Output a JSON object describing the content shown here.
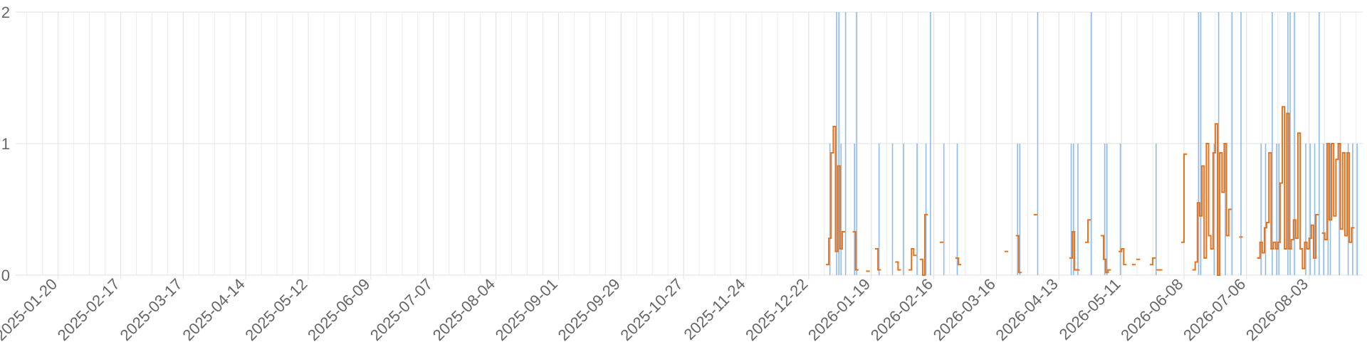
{
  "chart_data": {
    "type": "bar",
    "xlim": [
      "2025-01-01",
      "2026-08-27"
    ],
    "xticks": [
      "2025-01-20",
      "2025-02-17",
      "2025-03-17",
      "2025-04-14",
      "2025-05-12",
      "2025-06-09",
      "2025-07-07",
      "2025-08-04",
      "2025-09-01",
      "2025-09-29",
      "2025-10-27",
      "2025-11-24",
      "2025-12-22",
      "2026-01-19",
      "2026-02-16",
      "2026-03-16",
      "2026-04-13",
      "2026-05-11",
      "2026-06-08",
      "2026-07-06",
      "2026-08-03"
    ],
    "ylim": [
      0,
      2
    ],
    "yticks": [
      0,
      1,
      2
    ],
    "grid": true,
    "series": [
      {
        "color": "#8fbcea",
        "x": [
          "2025-12-31",
          "2026-01-03",
          "2026-01-04",
          "2026-01-05",
          "2026-01-07",
          "2026-01-11",
          "2026-01-12",
          "2026-01-22",
          "2026-01-28",
          "2026-02-02",
          "2026-02-08",
          "2026-02-12",
          "2026-02-14",
          "2026-02-20",
          "2026-02-26",
          "2026-03-25",
          "2026-03-26",
          "2026-04-03",
          "2026-04-18",
          "2026-04-19",
          "2026-04-21",
          "2026-04-27",
          "2026-05-03",
          "2026-05-04",
          "2026-05-10",
          "2026-05-26",
          "2026-06-14",
          "2026-06-15",
          "2026-06-21",
          "2026-06-23",
          "2026-06-26",
          "2026-06-29",
          "2026-07-03",
          "2026-07-12",
          "2026-07-14",
          "2026-07-17",
          "2026-07-19",
          "2026-07-20",
          "2026-07-24",
          "2026-07-25",
          "2026-07-27",
          "2026-08-01",
          "2026-08-03",
          "2026-08-05",
          "2026-08-07",
          "2026-08-09",
          "2026-08-11",
          "2026-08-12",
          "2026-08-16",
          "2026-08-20",
          "2026-08-22",
          "2026-08-24"
        ],
        "values": [
          1,
          2,
          2,
          1,
          2,
          1,
          2,
          1,
          1,
          1,
          1,
          1,
          2,
          1,
          1,
          1,
          1,
          2,
          1,
          1,
          1,
          2,
          1,
          1,
          1,
          1,
          2,
          2,
          1,
          2,
          1,
          2,
          2,
          1,
          1,
          2,
          1,
          1,
          2,
          2,
          2,
          1,
          1,
          1,
          2,
          1,
          1,
          1,
          1,
          1,
          1,
          1
        ]
      },
      {
        "type": "line",
        "step": "after",
        "color": "#e8731a",
        "x": [
          "2025-12-30",
          "2025-12-31",
          "2026-01-01",
          "2026-01-02",
          "2026-01-03",
          "2026-01-04",
          "2026-01-05",
          "2026-01-06",
          "2026-01-07",
          "2026-01-11",
          "2026-01-12",
          "2026-01-13",
          "2026-01-17",
          "2026-01-18",
          "2026-01-21",
          "2026-01-22",
          "2026-01-23",
          "2026-01-30",
          "2026-01-31",
          "2026-02-01",
          "2026-02-05",
          "2026-02-06",
          "2026-02-07",
          "2026-02-08",
          "2026-02-10",
          "2026-02-11",
          "2026-02-12",
          "2026-02-13",
          "2026-02-19",
          "2026-02-20",
          "2026-02-26",
          "2026-02-27",
          "2026-02-28",
          "2026-03-20",
          "2026-03-21",
          "2026-03-25",
          "2026-03-26",
          "2026-03-27",
          "2026-04-02",
          "2026-04-03",
          "2026-04-18",
          "2026-04-19",
          "2026-04-20",
          "2026-04-21",
          "2026-04-22",
          "2026-04-25",
          "2026-04-26",
          "2026-04-27",
          "2026-05-02",
          "2026-05-03",
          "2026-05-04",
          "2026-05-05",
          "2026-05-06",
          "2026-05-10",
          "2026-05-11",
          "2026-05-12",
          "2026-05-13",
          "2026-05-16",
          "2026-05-17",
          "2026-05-18",
          "2026-05-19",
          "2026-05-24",
          "2026-05-25",
          "2026-05-26",
          "2026-05-27",
          "2026-05-28",
          "2026-05-29",
          "2026-06-07",
          "2026-06-08",
          "2026-06-09",
          "2026-06-12",
          "2026-06-13",
          "2026-06-14",
          "2026-06-15",
          "2026-06-16",
          "2026-06-17",
          "2026-06-18",
          "2026-06-19",
          "2026-06-20",
          "2026-06-21",
          "2026-06-22",
          "2026-06-23",
          "2026-06-24",
          "2026-06-25",
          "2026-06-26",
          "2026-06-27",
          "2026-06-28",
          "2026-06-29",
          "2026-07-03",
          "2026-07-04",
          "2026-07-11",
          "2026-07-12",
          "2026-07-13",
          "2026-07-14",
          "2026-07-15",
          "2026-07-16",
          "2026-07-17",
          "2026-07-18",
          "2026-07-19",
          "2026-07-20",
          "2026-07-21",
          "2026-07-22",
          "2026-07-23",
          "2026-07-24",
          "2026-07-25",
          "2026-07-26",
          "2026-07-27",
          "2026-07-28",
          "2026-07-29",
          "2026-07-30",
          "2026-07-31",
          "2026-08-01",
          "2026-08-02",
          "2026-08-03",
          "2026-08-04",
          "2026-08-05",
          "2026-08-06",
          "2026-08-07",
          "2026-08-09",
          "2026-08-10",
          "2026-08-11",
          "2026-08-12",
          "2026-08-13",
          "2026-08-14",
          "2026-08-15",
          "2026-08-16",
          "2026-08-17",
          "2026-08-18",
          "2026-08-19",
          "2026-08-20",
          "2026-08-21",
          "2026-08-22"
        ],
        "values": [
          0.08,
          0.28,
          0.93,
          1.13,
          0.18,
          0.83,
          0.2,
          0.33,
          null,
          0.33,
          0.04,
          null,
          0.03,
          null,
          0.2,
          0.04,
          null,
          0.1,
          0.04,
          null,
          0.04,
          0.2,
          0.15,
          null,
          0.12,
          0.0,
          0.46,
          null,
          0.25,
          null,
          0.13,
          0.08,
          null,
          0.18,
          null,
          0.3,
          0.02,
          null,
          0.46,
          null,
          0.13,
          0.33,
          0.04,
          0.04,
          null,
          0.25,
          0.42,
          null,
          0.3,
          0.12,
          0.02,
          0.04,
          null,
          0.18,
          0.2,
          0.08,
          null,
          0.08,
          null,
          0.12,
          null,
          0.08,
          0.13,
          null,
          0.04,
          0.04,
          null,
          0.25,
          0.92,
          null,
          0.04,
          0.1,
          0.55,
          0.45,
          0.83,
          0.13,
          1.0,
          0.3,
          0.2,
          0.93,
          1.15,
          0.0,
          0.93,
          0.63,
          1.0,
          0.3,
          0.5,
          null,
          0.29,
          null,
          0.13,
          0.25,
          0.17,
          0.36,
          0.4,
          0.93,
          0.2,
          0.25,
          0.2,
          0.25,
          0.7,
          1.28,
          0.2,
          1.23,
          0.2,
          0.27,
          0.42,
          0.28,
          1.08,
          0.2,
          0.05,
          0.25,
          0.2,
          0.28,
          0.38,
          0.13,
          0.46,
          null,
          0.32,
          0.27,
          1.0,
          0.42,
          1.0,
          0.45,
          0.88,
          1.0,
          0.35,
          0.93,
          0.3,
          0.93,
          0.25,
          0.36
        ]
      }
    ]
  }
}
